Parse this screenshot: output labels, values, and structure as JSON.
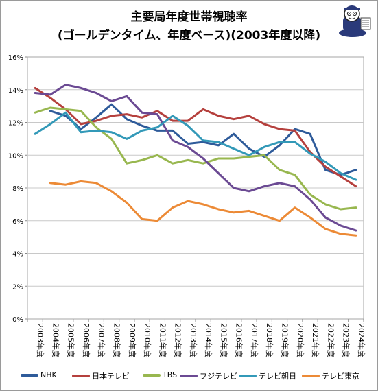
{
  "chart_data": {
    "type": "line",
    "title_line1": "主要局年度世帯視聴率",
    "title_line2": "(ゴールデンタイム、年度ベース)(2003年度以降)",
    "x": [
      "2003年度",
      "2004年度",
      "2005年度",
      "2006年度",
      "2007年度",
      "2008年度",
      "2009年度",
      "2010年度",
      "2011年度",
      "2012年度",
      "2013年度",
      "2014年度",
      "2015年度",
      "2016年度",
      "2017年度",
      "2018年度",
      "2019年度",
      "2020年度",
      "2021年度",
      "2022年度",
      "2023年度",
      "2024年度"
    ],
    "y_ticks": [
      "0%",
      "2%",
      "4%",
      "6%",
      "8%",
      "10%",
      "12%",
      "14%",
      "16%"
    ],
    "ylim": [
      0,
      16
    ],
    "grid": true,
    "legend_position": "bottom",
    "series": [
      {
        "name": "NHK",
        "color": "#2e5b9a",
        "values": [
          null,
          12.7,
          12.4,
          11.6,
          12.3,
          13.1,
          12.2,
          11.8,
          11.5,
          11.5,
          10.7,
          10.8,
          10.6,
          11.3,
          10.4,
          9.9,
          10.6,
          11.6,
          11.3,
          9.1,
          8.8,
          9.1
        ]
      },
      {
        "name": "日本テレビ",
        "color": "#b5403d",
        "values": [
          14.1,
          13.5,
          12.8,
          11.9,
          12.1,
          12.4,
          12.5,
          12.3,
          12.7,
          12.1,
          12.1,
          12.8,
          12.4,
          12.2,
          12.4,
          11.9,
          11.6,
          11.5,
          10.2,
          9.3,
          8.7,
          8.1
        ]
      },
      {
        "name": "TBS",
        "color": "#98b74f",
        "values": [
          12.6,
          12.9,
          12.8,
          12.7,
          11.7,
          11.0,
          9.5,
          9.7,
          10.0,
          9.5,
          9.7,
          9.5,
          9.8,
          9.8,
          9.9,
          10.0,
          9.1,
          8.8,
          7.6,
          7.0,
          6.7,
          6.8
        ]
      },
      {
        "name": "フジテレビ",
        "color": "#6b4a93",
        "values": [
          13.8,
          13.7,
          14.3,
          14.1,
          13.8,
          13.3,
          13.6,
          12.6,
          12.5,
          10.9,
          10.5,
          9.8,
          8.9,
          8.0,
          7.8,
          8.1,
          8.3,
          8.1,
          7.3,
          6.2,
          5.7,
          5.4
        ]
      },
      {
        "name": "テレビ朝日",
        "color": "#3399b8",
        "values": [
          11.3,
          11.9,
          12.6,
          11.4,
          11.5,
          11.4,
          11.0,
          11.5,
          11.7,
          12.4,
          11.8,
          10.9,
          10.8,
          10.4,
          10.0,
          10.5,
          10.8,
          10.8,
          10.1,
          9.6,
          8.9,
          8.5
        ]
      },
      {
        "name": "テレビ東京",
        "color": "#ec8a36",
        "values": [
          null,
          8.3,
          8.2,
          8.4,
          8.3,
          7.8,
          7.1,
          6.1,
          6.0,
          6.8,
          7.2,
          7.0,
          6.7,
          6.5,
          6.6,
          6.3,
          6.0,
          6.8,
          6.2,
          5.5,
          5.2,
          5.1
        ]
      }
    ]
  }
}
